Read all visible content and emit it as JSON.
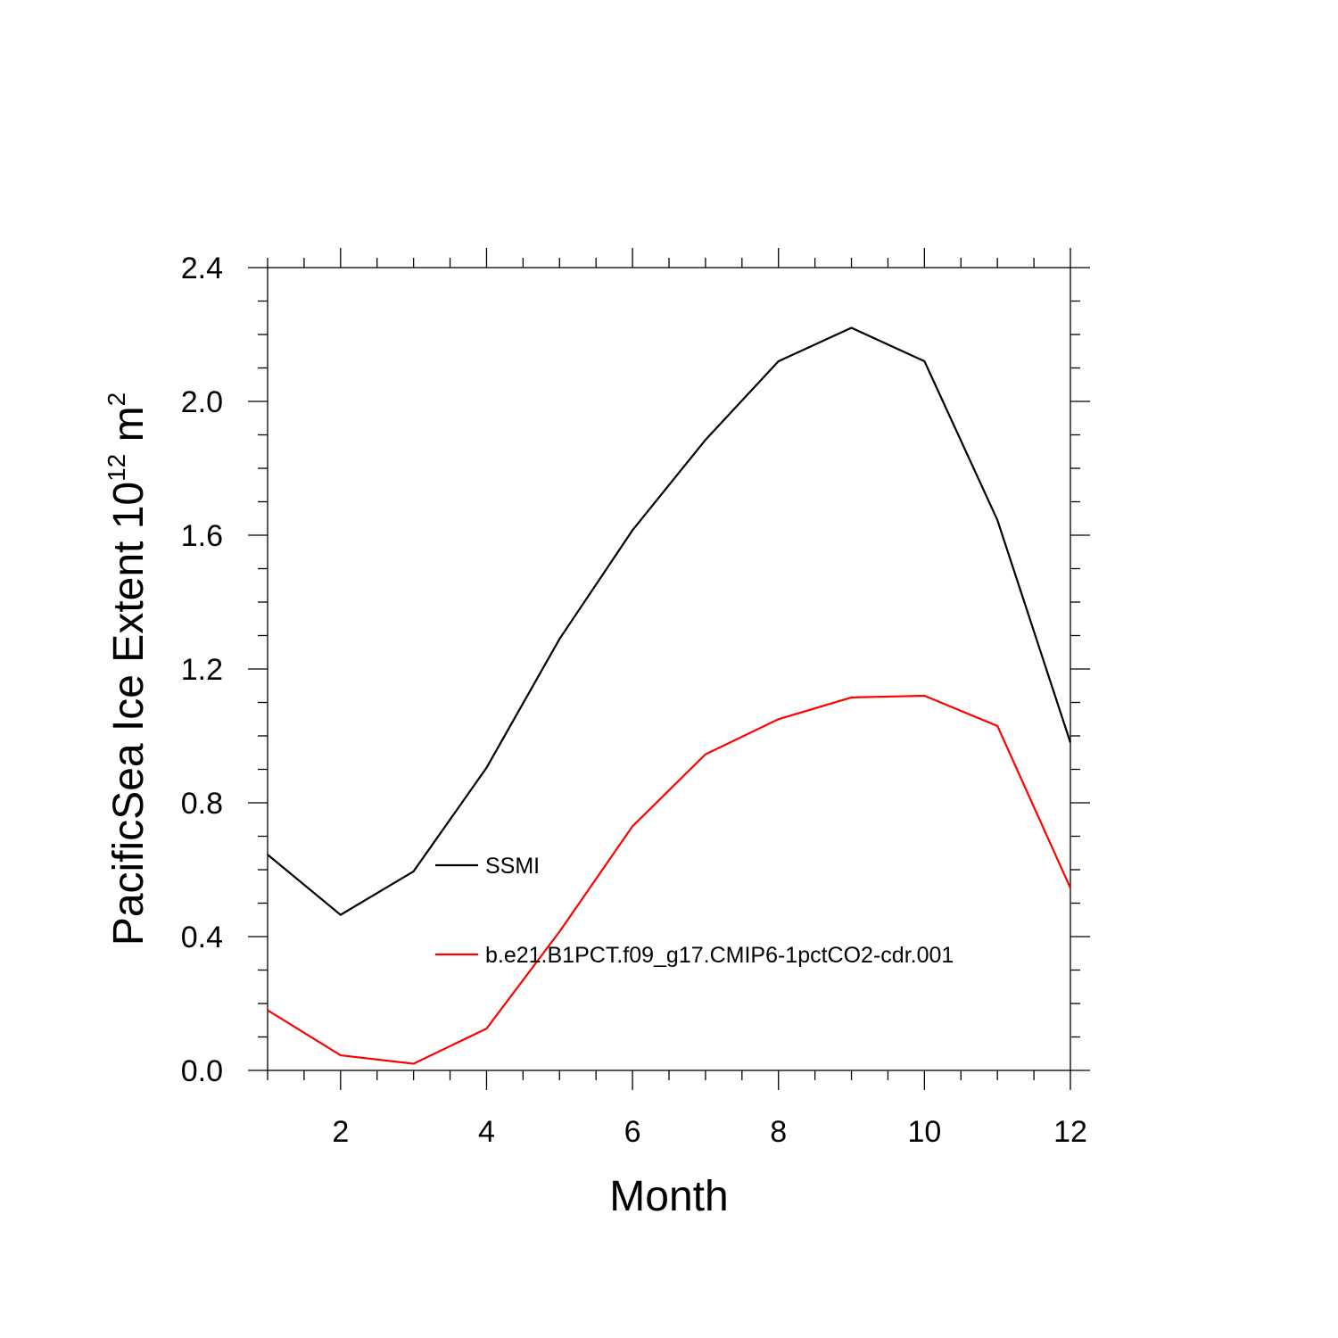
{
  "chart_data": {
    "type": "line",
    "xlabel": "Month",
    "ylabel": {
      "main": "PacificSea Ice Extent 10",
      "exp1": "12",
      "mid": " m",
      "exp2": "2"
    },
    "xlim": [
      1,
      12
    ],
    "ylim": [
      0.0,
      2.4
    ],
    "x_ticks": [
      2,
      4,
      6,
      8,
      10,
      12
    ],
    "x_tick_labels": [
      "2",
      "4",
      "6",
      "8",
      "10",
      "12"
    ],
    "y_ticks": [
      0.0,
      0.4,
      0.8,
      1.2,
      1.6,
      2.0,
      2.4
    ],
    "y_tick_labels": [
      "0.0",
      "0.4",
      "0.8",
      "1.2",
      "1.6",
      "2.0",
      "2.4"
    ],
    "grid": false,
    "legend_position": "inside-center",
    "x": [
      1,
      2,
      3,
      4,
      5,
      6,
      7,
      8,
      9,
      10,
      11,
      12
    ],
    "series": [
      {
        "name": "SSMI",
        "color": "#000000",
        "values": [
          0.645,
          0.465,
          0.595,
          0.905,
          1.29,
          1.615,
          1.885,
          2.12,
          2.22,
          2.12,
          1.645,
          0.98
        ]
      },
      {
        "name": "b.e21.B1PCT.f09_g17.CMIP6-1pctCO2-cdr.001",
        "color": "#ff0000",
        "values": [
          0.18,
          0.045,
          0.02,
          0.125,
          0.415,
          0.73,
          0.945,
          1.05,
          1.115,
          1.12,
          1.03,
          0.545
        ]
      }
    ]
  }
}
